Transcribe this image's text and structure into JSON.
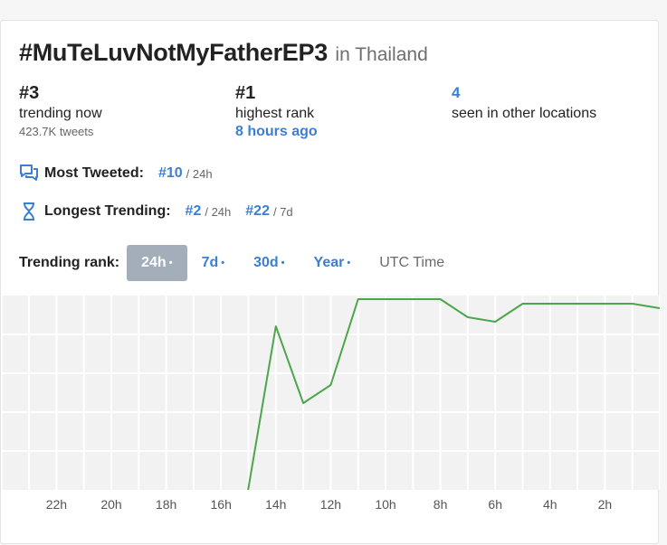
{
  "header": {
    "hashtag": "#MuTeLuvNotMyFatherEP3",
    "location": "in Thailand"
  },
  "stats": {
    "current": {
      "value": "#3",
      "label": "trending now",
      "sub": "423.7K tweets"
    },
    "highest": {
      "value": "#1",
      "label": "highest rank",
      "sub": "8 hours ago"
    },
    "locations": {
      "value": "4",
      "label": "seen in other locations"
    }
  },
  "most_tweeted": {
    "icon": "chat-bubbles-icon",
    "label": "Most Tweeted:",
    "ranks": [
      {
        "rank": "#10",
        "window": "/ 24h"
      }
    ]
  },
  "longest_trending": {
    "icon": "hourglass-icon",
    "label": "Longest Trending:",
    "ranks": [
      {
        "rank": "#2",
        "window": "/ 24h"
      },
      {
        "rank": "#22",
        "window": "/ 7d"
      }
    ]
  },
  "tabs": {
    "label": "Trending rank:",
    "items": [
      {
        "label": "24h",
        "active": true
      },
      {
        "label": "7d",
        "active": false
      },
      {
        "label": "30d",
        "active": false
      },
      {
        "label": "Year",
        "active": false
      }
    ],
    "dot": "•",
    "utc_label": "UTC Time"
  },
  "colors": {
    "accent": "#3c7fd0",
    "line": "#4ca64c",
    "active_tab": "#a3aeba",
    "grid": "#ffffff",
    "plot_bg": "#f2f2f2"
  },
  "chart_data": {
    "type": "line",
    "title": "",
    "xlabel": "",
    "ylabel": "",
    "x_ticks": [
      "22h",
      "20h",
      "18h",
      "16h",
      "14h",
      "12h",
      "10h",
      "8h",
      "6h",
      "4h",
      "2h"
    ],
    "x_unit": "hours ago",
    "x_range": [
      24,
      0
    ],
    "y_range": [
      1,
      50
    ],
    "y_inverted": true,
    "grid": true,
    "series": [
      {
        "x": [
          15.2,
          14,
          13,
          12,
          11,
          10,
          9,
          8,
          7,
          6,
          5,
          4,
          3,
          2,
          1,
          0
        ],
        "y": [
          50,
          7,
          24,
          20,
          1,
          1,
          1,
          1,
          5,
          6,
          2,
          2,
          2,
          2,
          2,
          3
        ]
      }
    ]
  }
}
